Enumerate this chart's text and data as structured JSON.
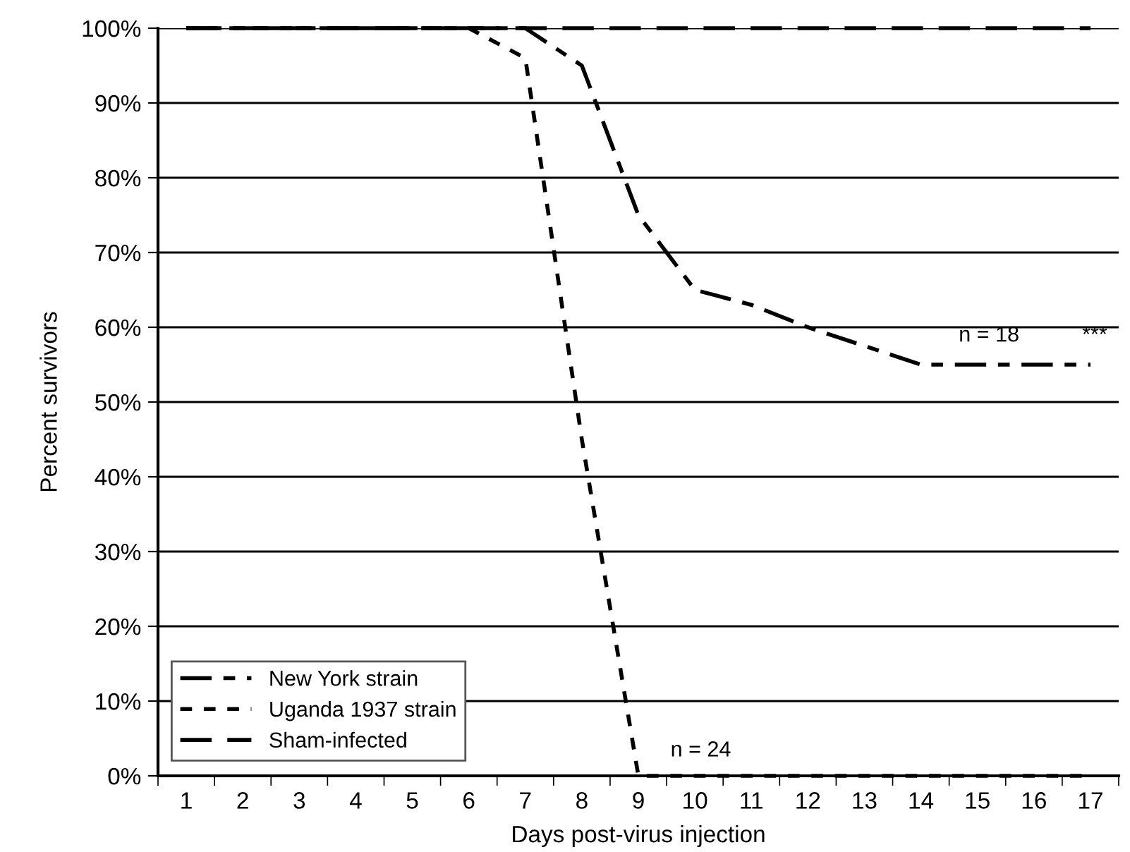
{
  "chart_data": {
    "type": "line",
    "xlabel": "Days post-virus injection",
    "ylabel": "Percent survivors",
    "categories": [
      "1",
      "2",
      "3",
      "4",
      "5",
      "6",
      "7",
      "8",
      "9",
      "10",
      "11",
      "12",
      "13",
      "14",
      "15",
      "16",
      "17"
    ],
    "series": [
      {
        "name": "New York strain",
        "color": "#000000",
        "line_style": "dashdot",
        "values": [
          100,
          100,
          100,
          100,
          100,
          100,
          100,
          95,
          75,
          65,
          63,
          60,
          57.5,
          55,
          55,
          55,
          55
        ]
      },
      {
        "name": "Uganda 1937 strain",
        "color": "#000000",
        "line_style": "dotted",
        "values": [
          100,
          100,
          100,
          100,
          100,
          100,
          96,
          45,
          0,
          0,
          0,
          0,
          0,
          0,
          0,
          0,
          0
        ]
      },
      {
        "name": "Sham-infected",
        "color": "#000000",
        "line_style": "dashed",
        "values": [
          100,
          100,
          100,
          100,
          100,
          100,
          100,
          100,
          100,
          100,
          100,
          100,
          100,
          100,
          100,
          100,
          100
        ]
      }
    ],
    "ylim": [
      0,
      100
    ],
    "yticks": [
      {
        "value": 0,
        "label": "0%"
      },
      {
        "value": 10,
        "label": "10%"
      },
      {
        "value": 20,
        "label": "20%"
      },
      {
        "value": 30,
        "label": "30%"
      },
      {
        "value": 40,
        "label": "40%"
      },
      {
        "value": 50,
        "label": "50%"
      },
      {
        "value": 60,
        "label": "60%"
      },
      {
        "value": 70,
        "label": "70%"
      },
      {
        "value": 80,
        "label": "80%"
      },
      {
        "value": 90,
        "label": "90%"
      },
      {
        "value": 100,
        "label": "100%"
      }
    ],
    "grid": "y",
    "legend": "bottom left",
    "marker": "none",
    "annotations": [
      "n = 18",
      "***",
      "n = 24"
    ]
  }
}
